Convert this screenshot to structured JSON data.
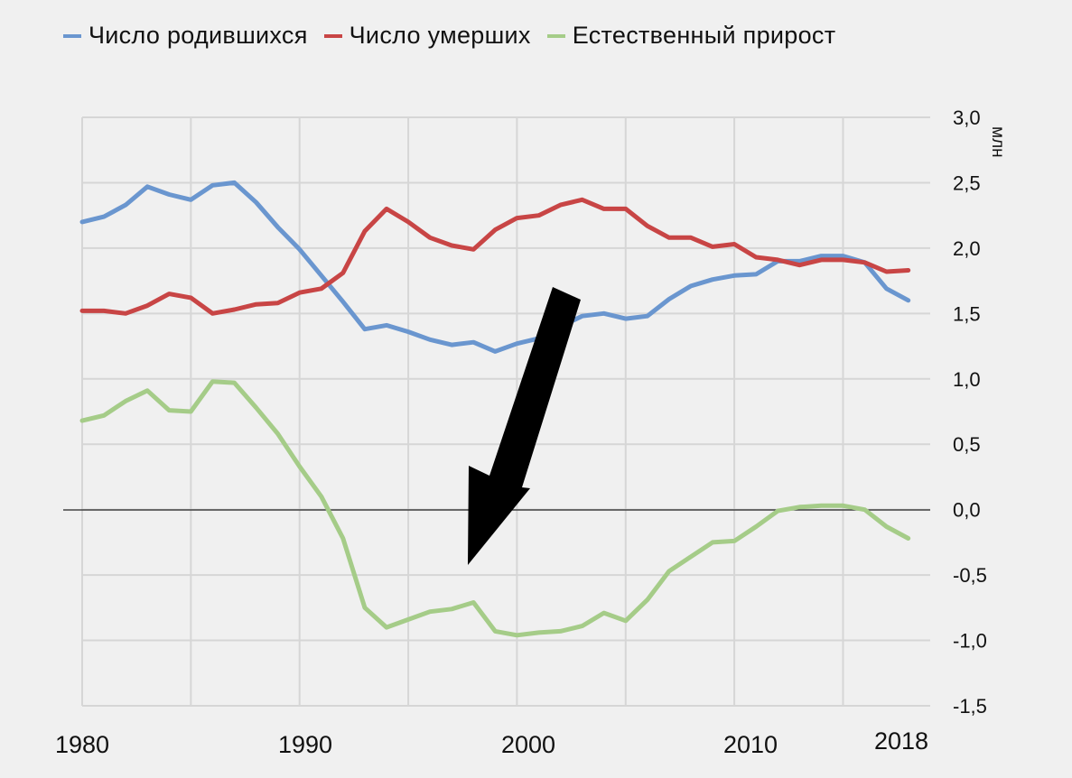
{
  "legend": {
    "items": [
      {
        "label": "Число родившихся",
        "color": "#6a96cf"
      },
      {
        "label": "Число умерших",
        "color": "#c84545"
      },
      {
        "label": "Естественный прирост",
        "color": "#a5cc88"
      }
    ]
  },
  "axis": {
    "unit_label": "млн",
    "y_ticks": [
      "3,0",
      "2,5",
      "2,0",
      "1,5",
      "1,0",
      "0,5",
      "0,0",
      "-0,5",
      "-1,0",
      "-1,5"
    ],
    "x_ticks": [
      "1980",
      "1990",
      "2000",
      "2010",
      "2018"
    ]
  },
  "annotation": {
    "type": "arrow",
    "color": "#000000",
    "points_to": "1990s natural decline"
  },
  "chart_data": {
    "type": "line",
    "title": "",
    "xlabel": "",
    "ylabel": "млн",
    "ylim": [
      -1.5,
      3.0
    ],
    "grid": true,
    "legend_position": "top",
    "x": [
      1980,
      1981,
      1982,
      1983,
      1984,
      1985,
      1986,
      1987,
      1988,
      1989,
      1990,
      1991,
      1992,
      1993,
      1994,
      1995,
      1996,
      1997,
      1998,
      1999,
      2000,
      2001,
      2002,
      2003,
      2004,
      2005,
      2006,
      2007,
      2008,
      2009,
      2010,
      2011,
      2012,
      2013,
      2014,
      2015,
      2016,
      2017,
      2018
    ],
    "series": [
      {
        "name": "Число родившихся",
        "color": "#6a96cf",
        "values": [
          2.2,
          2.24,
          2.33,
          2.47,
          2.41,
          2.37,
          2.48,
          2.5,
          2.35,
          2.16,
          1.99,
          1.79,
          1.59,
          1.38,
          1.41,
          1.36,
          1.3,
          1.26,
          1.28,
          1.21,
          1.27,
          1.31,
          1.4,
          1.48,
          1.5,
          1.46,
          1.48,
          1.61,
          1.71,
          1.76,
          1.79,
          1.8,
          1.9,
          1.9,
          1.94,
          1.94,
          1.89,
          1.69,
          1.6
        ]
      },
      {
        "name": "Число умерших",
        "color": "#c84545",
        "values": [
          1.52,
          1.52,
          1.5,
          1.56,
          1.65,
          1.62,
          1.5,
          1.53,
          1.57,
          1.58,
          1.66,
          1.69,
          1.81,
          2.13,
          2.3,
          2.2,
          2.08,
          2.02,
          1.99,
          2.14,
          2.23,
          2.25,
          2.33,
          2.37,
          2.3,
          2.3,
          2.17,
          2.08,
          2.08,
          2.01,
          2.03,
          1.93,
          1.91,
          1.87,
          1.91,
          1.91,
          1.89,
          1.82,
          1.83
        ]
      },
      {
        "name": "Естественный прирост",
        "color": "#a5cc88",
        "values": [
          0.68,
          0.72,
          0.83,
          0.91,
          0.76,
          0.75,
          0.98,
          0.97,
          0.78,
          0.58,
          0.33,
          0.1,
          -0.22,
          -0.75,
          -0.9,
          -0.84,
          -0.78,
          -0.76,
          -0.71,
          -0.93,
          -0.96,
          -0.94,
          -0.93,
          -0.89,
          -0.79,
          -0.85,
          -0.69,
          -0.47,
          -0.36,
          -0.25,
          -0.24,
          -0.13,
          -0.01,
          0.02,
          0.03,
          0.03,
          0.0,
          -0.13,
          -0.22
        ]
      }
    ],
    "y_tick_labels": [
      "3,0",
      "2,5",
      "2,0",
      "1,5",
      "1,0",
      "0,5",
      "0,0",
      "-0,5",
      "-1,0",
      "-1,5"
    ],
    "x_tick_labels": [
      "1980",
      "1990",
      "2000",
      "2010",
      "2018"
    ]
  }
}
